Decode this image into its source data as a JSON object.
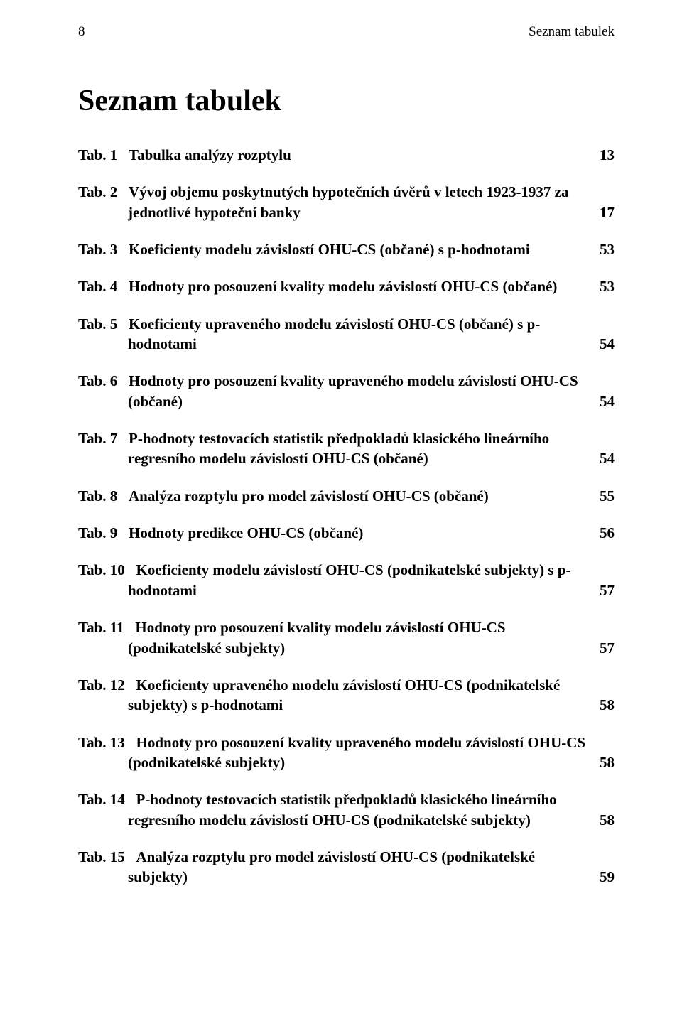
{
  "header": {
    "page_number": "8",
    "section_label": "Seznam tabulek"
  },
  "title": "Seznam tabulek",
  "entries": [
    {
      "prefix": "Tab. 1",
      "label": "Tabulka analýzy rozptylu",
      "page": "13"
    },
    {
      "prefix": "Tab. 2",
      "label": "Vývoj objemu poskytnutých hypotečních úvěrů v letech 1923-1937 za jednotlivé hypoteční banky",
      "page": "17"
    },
    {
      "prefix": "Tab. 3",
      "label": "Koeficienty modelu závislostí OHU-CS (občané) s p-hodnotami",
      "page": "53"
    },
    {
      "prefix": "Tab. 4",
      "label": "Hodnoty pro posouzení kvality modelu závislostí OHU-CS (občané)",
      "page": "53"
    },
    {
      "prefix": "Tab. 5",
      "label": "Koeficienty upraveného modelu závislostí OHU-CS (občané) s p-hodnotami",
      "page": "54"
    },
    {
      "prefix": "Tab. 6",
      "label": "Hodnoty pro posouzení kvality upraveného modelu závislostí OHU-CS (občané)",
      "page": "54"
    },
    {
      "prefix": "Tab. 7",
      "label": "P-hodnoty testovacích statistik předpokladů klasického lineárního regresního modelu závislostí OHU-CS (občané)",
      "page": "54"
    },
    {
      "prefix": "Tab. 8",
      "label": "Analýza rozptylu pro model závislostí OHU-CS (občané)",
      "page": "55"
    },
    {
      "prefix": "Tab. 9",
      "label": "Hodnoty predikce OHU-CS (občané)",
      "page": "56"
    },
    {
      "prefix": "Tab. 10",
      "label": "Koeficienty modelu závislostí OHU-CS (podnikatelské subjekty) s p-hodnotami",
      "page": "57"
    },
    {
      "prefix": "Tab. 11",
      "label": "Hodnoty pro posouzení kvality modelu závislostí OHU-CS (podnikatelské subjekty)",
      "page": "57"
    },
    {
      "prefix": "Tab. 12",
      "label": "Koeficienty upraveného modelu závislostí OHU-CS (podnikatelské subjekty) s p-hodnotami",
      "page": "58"
    },
    {
      "prefix": "Tab. 13",
      "label": "Hodnoty pro posouzení kvality upraveného modelu závislostí OHU-CS (podnikatelské subjekty)",
      "page": "58"
    },
    {
      "prefix": "Tab. 14",
      "label": "P-hodnoty testovacích statistik předpokladů klasického lineárního regresního modelu závislostí OHU-CS (podnikatelské subjekty)",
      "page": "58"
    },
    {
      "prefix": "Tab. 15",
      "label": "Analýza rozptylu pro model závislostí OHU-CS (podnikatelské subjekty)",
      "page": "59"
    }
  ]
}
